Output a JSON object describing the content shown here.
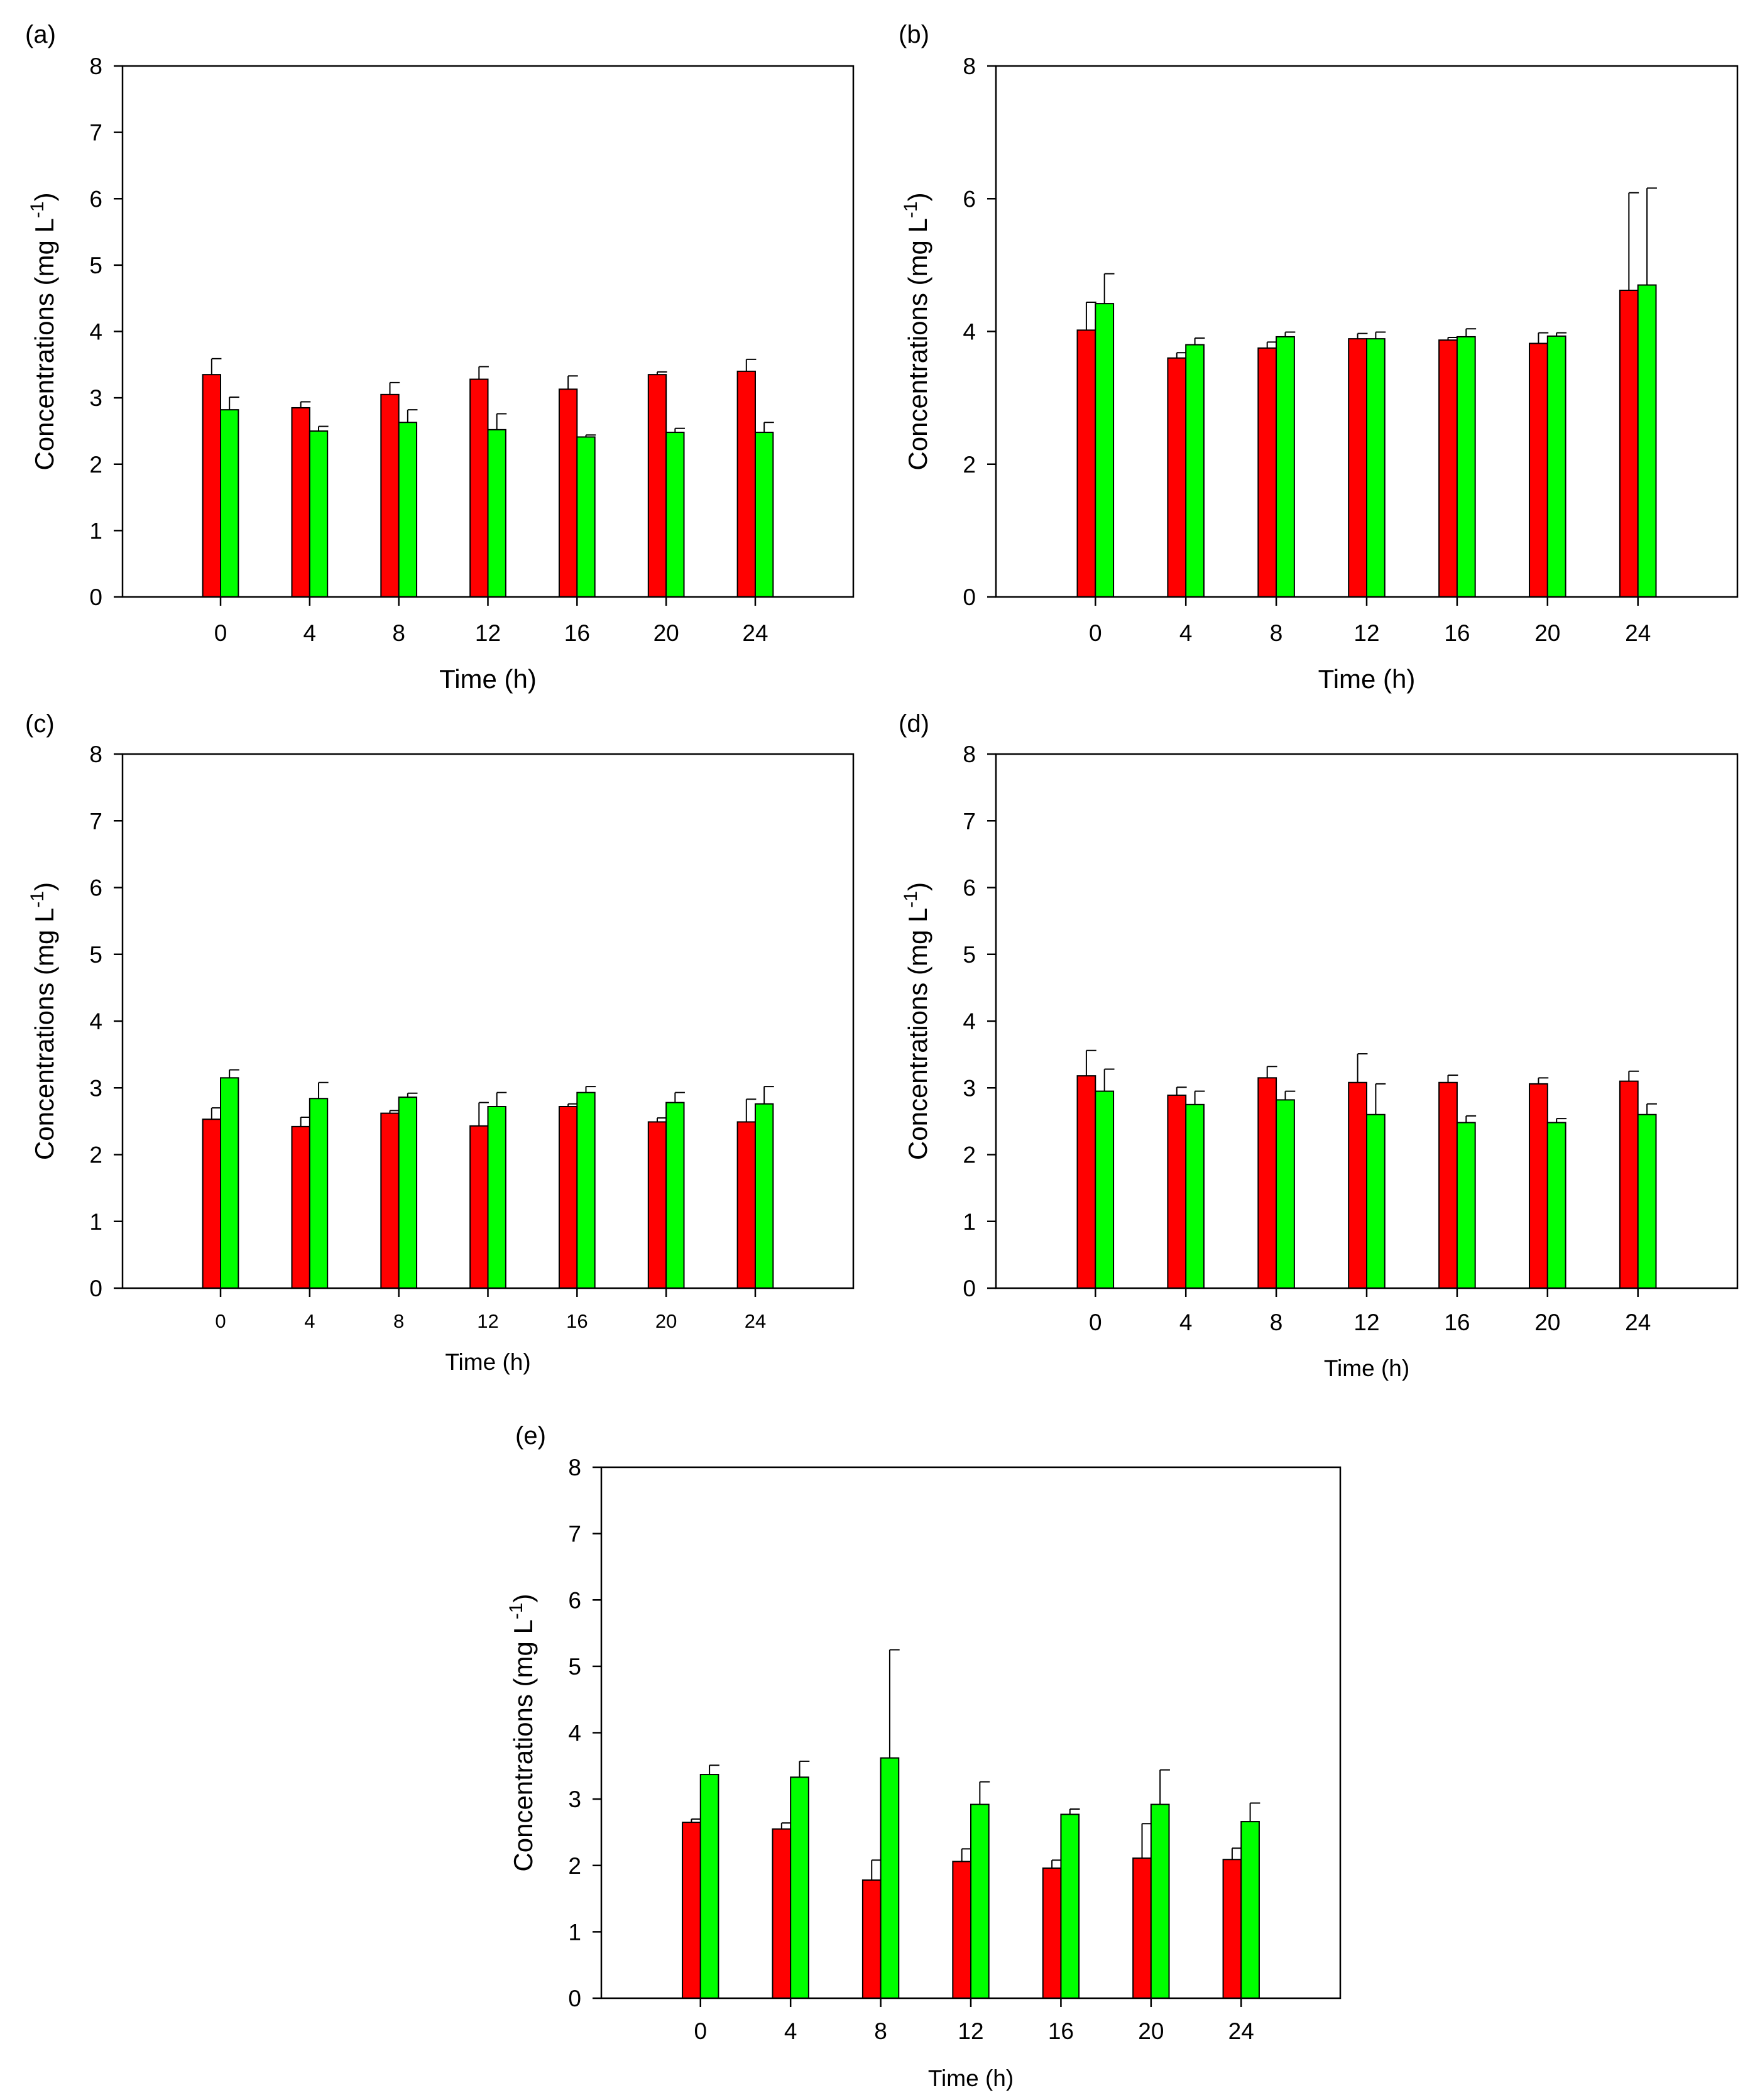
{
  "chart_data": [
    {
      "panel_label": "(a)",
      "type": "bar",
      "categories": [
        "0",
        "4",
        "8",
        "12",
        "16",
        "20",
        "24"
      ],
      "xlabel": "Time (h)",
      "ylabel": "Concentrations (mg L",
      "ylabel_superscript": "-1",
      "ylabel_close": ")",
      "ylim": [
        0,
        8
      ],
      "yticks": [
        0,
        1,
        2,
        3,
        4,
        5,
        6,
        7,
        8
      ],
      "series": [
        {
          "name": "red",
          "color": "#ff0000",
          "values": [
            3.35,
            2.85,
            3.05,
            3.28,
            3.13,
            3.35,
            3.4
          ],
          "errors": [
            0.24,
            0.09,
            0.18,
            0.19,
            0.2,
            0.04,
            0.18
          ]
        },
        {
          "name": "green",
          "color": "#00ff00",
          "values": [
            2.82,
            2.5,
            2.63,
            2.52,
            2.41,
            2.48,
            2.48
          ],
          "errors": [
            0.19,
            0.07,
            0.19,
            0.24,
            0.03,
            0.06,
            0.15
          ]
        }
      ]
    },
    {
      "panel_label": "(b)",
      "type": "bar",
      "categories": [
        "0",
        "4",
        "8",
        "12",
        "16",
        "20",
        "24"
      ],
      "xlabel": "Time (h)",
      "ylabel": "Concentrations (mg L",
      "ylabel_superscript": "-1",
      "ylabel_close": ")",
      "ylim": [
        0,
        8
      ],
      "yticks": [
        0,
        2,
        4,
        6,
        8
      ],
      "series": [
        {
          "name": "red",
          "color": "#ff0000",
          "values": [
            4.02,
            3.6,
            3.75,
            3.89,
            3.87,
            3.82,
            4.62
          ],
          "errors": [
            0.42,
            0.08,
            0.09,
            0.08,
            0.04,
            0.16,
            1.47
          ]
        },
        {
          "name": "green",
          "color": "#00ff00",
          "values": [
            4.42,
            3.8,
            3.92,
            3.89,
            3.92,
            3.93,
            4.7
          ],
          "errors": [
            0.45,
            0.1,
            0.07,
            0.1,
            0.12,
            0.05,
            1.46
          ]
        }
      ]
    },
    {
      "panel_label": "(c)",
      "type": "bar",
      "categories": [
        "0",
        "4",
        "8",
        "12",
        "16",
        "20",
        "24"
      ],
      "xlabel": "Time (h)",
      "ylabel": "Concentrations (mg L",
      "ylabel_superscript": "-1",
      "ylabel_close": ")",
      "ylim": [
        0,
        8
      ],
      "yticks": [
        0,
        1,
        2,
        3,
        4,
        5,
        6,
        7,
        8
      ],
      "series": [
        {
          "name": "red",
          "color": "#ff0000",
          "values": [
            2.53,
            2.42,
            2.62,
            2.43,
            2.72,
            2.49,
            2.49
          ],
          "errors": [
            0.17,
            0.14,
            0.04,
            0.35,
            0.04,
            0.06,
            0.34
          ]
        },
        {
          "name": "green",
          "color": "#00ff00",
          "values": [
            3.15,
            2.84,
            2.86,
            2.72,
            2.93,
            2.78,
            2.76
          ],
          "errors": [
            0.12,
            0.24,
            0.06,
            0.21,
            0.09,
            0.15,
            0.26
          ]
        }
      ]
    },
    {
      "panel_label": "(d)",
      "type": "bar",
      "categories": [
        "0",
        "4",
        "8",
        "12",
        "16",
        "20",
        "24"
      ],
      "xlabel": "Time (h)",
      "ylabel": "Concentrations (mg L",
      "ylabel_superscript": "-1",
      "ylabel_close": ")",
      "ylim": [
        0,
        8
      ],
      "yticks": [
        0,
        1,
        2,
        3,
        4,
        5,
        6,
        7,
        8
      ],
      "series": [
        {
          "name": "red",
          "color": "#ff0000",
          "values": [
            3.18,
            2.89,
            3.15,
            3.08,
            3.08,
            3.06,
            3.1
          ],
          "errors": [
            0.38,
            0.12,
            0.17,
            0.43,
            0.11,
            0.09,
            0.15
          ]
        },
        {
          "name": "green",
          "color": "#00ff00",
          "values": [
            2.95,
            2.75,
            2.82,
            2.6,
            2.48,
            2.48,
            2.6
          ],
          "errors": [
            0.33,
            0.2,
            0.13,
            0.46,
            0.1,
            0.06,
            0.16
          ]
        }
      ]
    },
    {
      "panel_label": "(e)",
      "type": "bar",
      "categories": [
        "0",
        "4",
        "8",
        "12",
        "16",
        "20",
        "24"
      ],
      "xlabel": "Time (h)",
      "ylabel": "Concentrations (mg L",
      "ylabel_superscript": "-1",
      "ylabel_close": ")",
      "ylim": [
        0,
        8
      ],
      "yticks": [
        0,
        1,
        2,
        3,
        4,
        5,
        6,
        7,
        8
      ],
      "series": [
        {
          "name": "red",
          "color": "#ff0000",
          "values": [
            2.65,
            2.55,
            1.78,
            2.06,
            1.96,
            2.11,
            2.09
          ],
          "errors": [
            0.05,
            0.09,
            0.3,
            0.19,
            0.12,
            0.52,
            0.17
          ]
        },
        {
          "name": "green",
          "color": "#00ff00",
          "values": [
            3.37,
            3.33,
            3.62,
            2.92,
            2.77,
            2.92,
            2.66
          ],
          "errors": [
            0.14,
            0.24,
            1.63,
            0.34,
            0.08,
            0.52,
            0.28
          ]
        }
      ]
    }
  ]
}
